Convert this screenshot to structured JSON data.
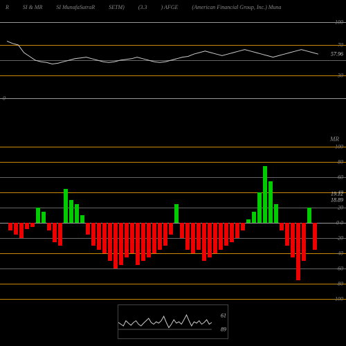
{
  "header": {
    "items": [
      "R",
      "SI & MR",
      "SI MunafaSutraR",
      "SETM)",
      "(3.3",
      ") AFGE",
      "(American Financial Group, Inc.) Muna"
    ]
  },
  "top_chart": {
    "type": "line",
    "ylim": [
      0,
      100
    ],
    "gridlines": [
      {
        "y": 100,
        "color": "#999999",
        "label": "100"
      },
      {
        "y": 70,
        "color": "#cc8800",
        "label": "70"
      },
      {
        "y": 50,
        "color": "#666666",
        "label": ""
      },
      {
        "y": 30,
        "color": "#cc8800",
        "label": "30"
      },
      {
        "y": 0,
        "color": "#999999",
        "label": "0",
        "side": "left"
      }
    ],
    "line_color": "#cccccc",
    "current_value": "57.96",
    "points": [
      75,
      72,
      70,
      60,
      55,
      50,
      48,
      47,
      45,
      46,
      48,
      50,
      52,
      53,
      54,
      52,
      50,
      48,
      47,
      48,
      50,
      51,
      52,
      54,
      52,
      50,
      48,
      47,
      48,
      50,
      52,
      54,
      55,
      58,
      60,
      62,
      60,
      58,
      56,
      58,
      60,
      62,
      64,
      62,
      60,
      58,
      56,
      54,
      56,
      58,
      60,
      62,
      64,
      62,
      60,
      58
    ]
  },
  "mid_label": "MR",
  "bar_chart": {
    "type": "bar",
    "ylim": [
      -100,
      100
    ],
    "gridlines": [
      {
        "y": 100,
        "color": "#cc8800",
        "label": "100"
      },
      {
        "y": 80,
        "color": "#cc8800",
        "label": "80"
      },
      {
        "y": 60,
        "color": "#666666",
        "label": "60"
      },
      {
        "y": 40,
        "color": "#cc8800",
        "label": "40"
      },
      {
        "y": 20,
        "color": "#666666",
        "label": "20"
      },
      {
        "y": 0,
        "color": "#999999",
        "label": "0  0"
      },
      {
        "y": -20,
        "color": "#666666",
        "label": "-20"
      },
      {
        "y": -40,
        "color": "#cc8800",
        "label": "-40"
      },
      {
        "y": -60,
        "color": "#666666",
        "label": "-60"
      },
      {
        "y": -80,
        "color": "#cc8800",
        "label": "-80"
      },
      {
        "y": -100,
        "color": "#cc8800",
        "label": "-100"
      }
    ],
    "value_labels": [
      {
        "v": "19.12",
        "y": 38
      },
      {
        "v": "18.89",
        "y": 30
      }
    ],
    "pos_color": "#00cc00",
    "neg_color": "#ee0000",
    "values": [
      -10,
      -15,
      -20,
      -8,
      -5,
      20,
      15,
      -10,
      -25,
      -30,
      45,
      30,
      25,
      10,
      -15,
      -30,
      -35,
      -40,
      -50,
      -60,
      -55,
      -45,
      -40,
      -55,
      -50,
      -45,
      -40,
      -35,
      -30,
      -15,
      25,
      -20,
      -35,
      -40,
      -35,
      -50,
      -45,
      -40,
      -35,
      -30,
      -25,
      -20,
      -10,
      5,
      15,
      40,
      75,
      55,
      25,
      -10,
      -30,
      -45,
      -75,
      -50,
      20,
      -35
    ]
  },
  "bottom_chart": {
    "type": "line",
    "line_color": "#cccccc",
    "labels": [
      {
        "v": "61",
        "y": 0.3
      },
      {
        "v": "89",
        "y": 0.7
      }
    ],
    "points": [
      50,
      45,
      40,
      55,
      48,
      42,
      50,
      55,
      45,
      40,
      48,
      55,
      62,
      50,
      45,
      52,
      48,
      55,
      68,
      50,
      35,
      45,
      58,
      48,
      52,
      45,
      58,
      72,
      55,
      40,
      52,
      48,
      55,
      45,
      50,
      58,
      45,
      50
    ]
  },
  "colors": {
    "bg": "#000000",
    "text": "#888888",
    "orange": "#cc8800",
    "grey": "#666666",
    "light_grey": "#999999"
  }
}
